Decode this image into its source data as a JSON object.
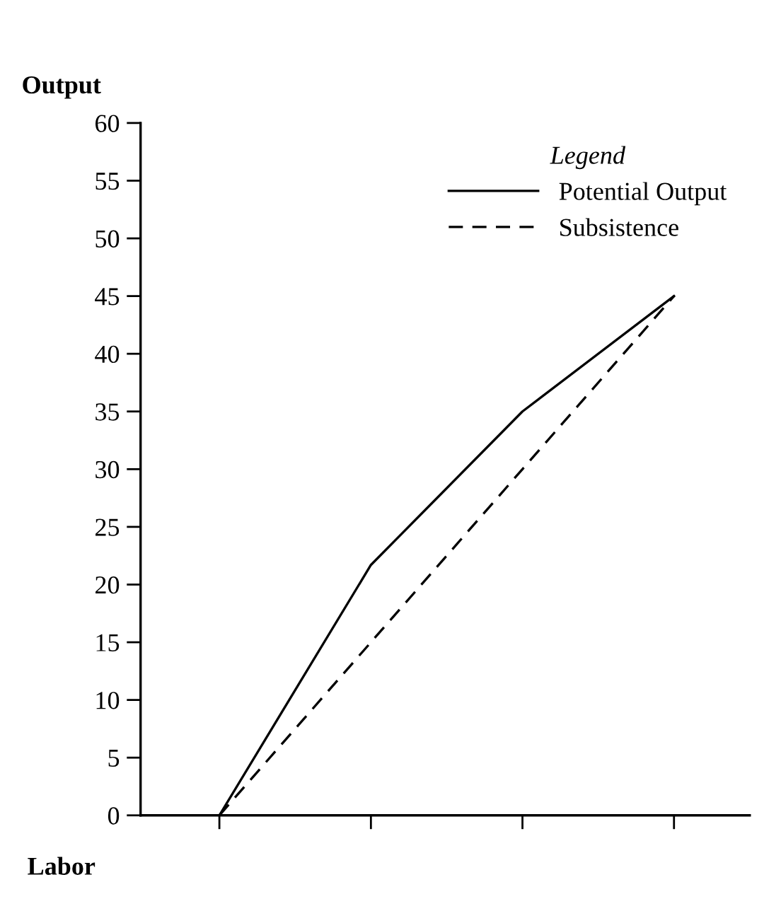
{
  "chart_data": {
    "type": "line",
    "xlabel": "Labor",
    "ylabel": "Output",
    "legend_title": "Legend",
    "categories": [
      null,
      null,
      null,
      null
    ],
    "series": [
      {
        "name": "Potential Output",
        "color": "#000000",
        "line_style": "solid",
        "values": [
          0,
          21.7,
          35,
          45
        ]
      },
      {
        "name": "Subsistence",
        "color": "#000000",
        "line_style": "dashed",
        "values": [
          0,
          15,
          30,
          45
        ]
      }
    ],
    "ylim": [
      0,
      60
    ],
    "yticks": [
      0,
      5,
      10,
      15,
      20,
      25,
      30,
      35,
      40,
      45,
      50,
      55,
      60
    ],
    "grid": false,
    "legend": "top right",
    "marker": "none"
  }
}
